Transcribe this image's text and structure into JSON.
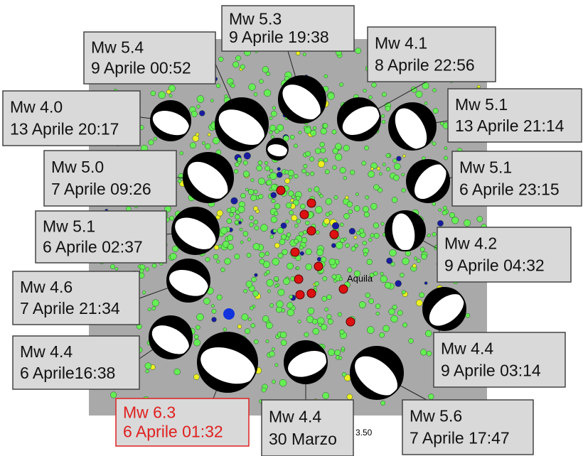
{
  "map": {
    "labels": [
      {
        "magnitude": "Mw 5.3",
        "date": "9 Aprile 19:38"
      },
      {
        "magnitude": "Mw 5.4",
        "date": "9 Aprile 00:52"
      },
      {
        "magnitude": "Mw 4.1",
        "date": "8 Aprile 22:56"
      },
      {
        "magnitude": "Mw 4.0",
        "date": "13 Aprile 20:17"
      },
      {
        "magnitude": "Mw 5.1",
        "date": "13 Aprile 21:14"
      },
      {
        "magnitude": "Mw 5.0",
        "date": "7 Aprile 09:26"
      },
      {
        "magnitude": "Mw 5.1",
        "date": "6 Aprile 23:15"
      },
      {
        "magnitude": "Mw 5.1",
        "date": "6 Aprile 02:37"
      },
      {
        "magnitude": "Mw 4.2",
        "date": "9 Aprile 04:32"
      },
      {
        "magnitude": "Mw 4.6",
        "date": "7 Aprile 21:34"
      },
      {
        "magnitude": "Mw 4.4",
        "date": "6 Aprile16:38"
      },
      {
        "magnitude": "Mw 4.4",
        "date": "9 Aprile 03:14"
      },
      {
        "magnitude": "Mw 6.3",
        "date": "6 Aprile 01:32"
      },
      {
        "magnitude": "Mw 4.4",
        "date": "30 Marzo"
      },
      {
        "magnitude": "Mw 5.6",
        "date": "7 Aprile 17:47"
      }
    ],
    "town": "Aquila",
    "tick": "3.50"
  }
}
